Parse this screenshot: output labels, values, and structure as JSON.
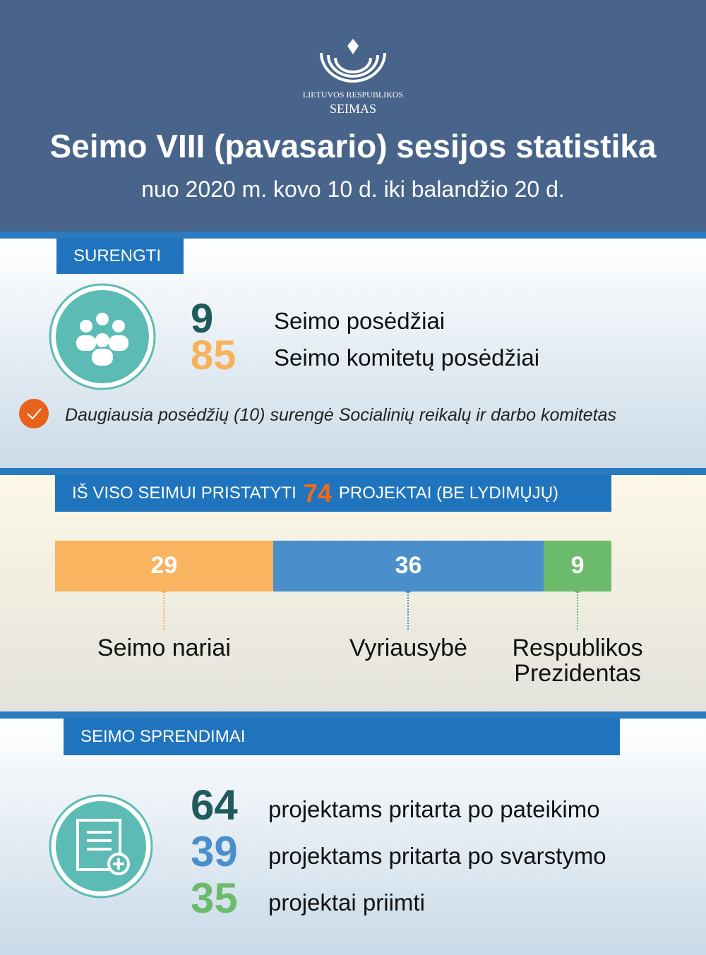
{
  "header": {
    "logo_line1": "LIETUVOS RESPUBLIKOS",
    "logo_line2": "SEIMAS",
    "title": "Seimo VIII (pavasario) sesijos statistika",
    "subtitle": "nuo 2020 m. kovo 10 d. iki balandžio 20 d."
  },
  "held": {
    "label": "SURENGTI",
    "items": [
      {
        "value": 9,
        "label": "Seimo posėdžiai",
        "color": "#1f5a5c"
      },
      {
        "value": 85,
        "label": "Seimo komitetų posėdžiai",
        "color": "#f7b35c"
      }
    ],
    "note": "Daugiausia posėdžių (10) surengė Socialinių reikalų ir darbo komitetas"
  },
  "projects": {
    "label_before": "IŠ VISO SEIMUI PRISTATYTI",
    "total": 74,
    "label_after": "PROJEKTAI (BE LYDIMŲJŲ)",
    "segments": [
      {
        "value": 29,
        "name": "Seimo nariai",
        "color": "#f8b45e"
      },
      {
        "value": 36,
        "name": "Vyriausybė",
        "color": "#4a8fcb"
      },
      {
        "value": 9,
        "name": "Respublikos Prezidentas",
        "color": "#6cbb6c"
      }
    ]
  },
  "decisions": {
    "label": "SEIMO SPRENDIMAI",
    "items": [
      {
        "value": 64,
        "label": "projektams pritarta po pateikimo",
        "color": "#1f5a5c"
      },
      {
        "value": 39,
        "label": "projektams pritarta po svarstymo",
        "color": "#4a8fcb"
      },
      {
        "value": 35,
        "label": "projektai priimti",
        "color": "#6cbb6c"
      }
    ]
  }
}
